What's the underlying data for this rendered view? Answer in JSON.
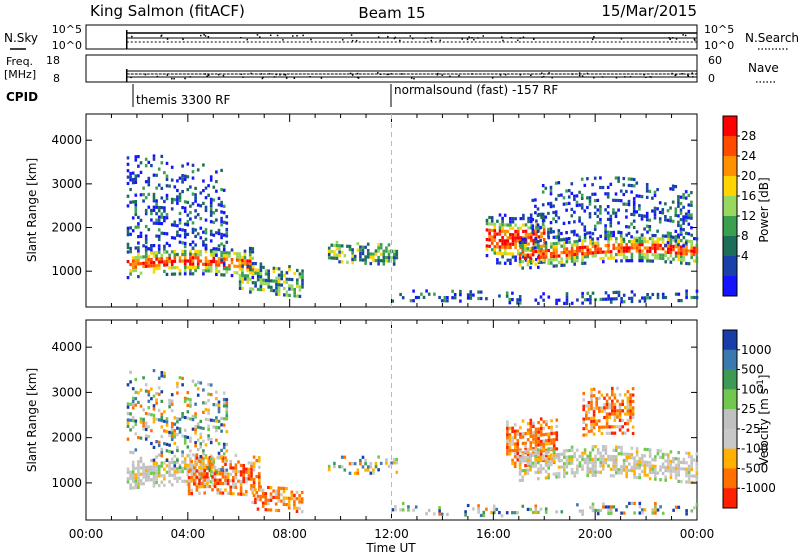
{
  "header": {
    "station": "King Salmon (fitACF)",
    "beam": "Beam 15",
    "date": "15/Mar/2015"
  },
  "top_panel": {
    "left_labels": [
      "N.Sky",
      "Freq.",
      "[MHz]",
      "CPID"
    ],
    "right_labels": [
      "N.Search",
      "Nave"
    ],
    "nsky_ticks": [
      "10^5",
      "10^0"
    ],
    "nsearch_ticks": [
      "10^5",
      "10^0"
    ],
    "freq_ticks": [
      "18",
      "8"
    ],
    "nave_ticks": [
      "60",
      "0"
    ],
    "cpid_segments": [
      {
        "label": "themis 3300 RF",
        "start_hour": 1.6
      },
      {
        "label": "normalsound (fast) -157 RF",
        "start_hour": 12.0
      }
    ]
  },
  "chart_data": [
    {
      "type": "heatmap",
      "title": "",
      "xlabel": "Time UT",
      "ylabel": "Slant Range [km]",
      "xlim": [
        0,
        24
      ],
      "ylim": [
        180,
        4600
      ],
      "x_tick_labels": [
        "00:00",
        "04:00",
        "08:00",
        "12:00",
        "16:00",
        "20:00",
        "00:00"
      ],
      "x_ticks_hours": [
        0,
        4,
        8,
        12,
        16,
        20,
        24
      ],
      "y_ticks": [
        1000,
        2000,
        3000,
        4000
      ],
      "colorbar": {
        "label": "Power [dB]",
        "tick_labels": [
          "28",
          "24",
          "20",
          "16",
          "12",
          "8",
          "4"
        ],
        "colors": [
          "#ff0000",
          "#ff4a00",
          "#ff9000",
          "#ffd400",
          "#98d860",
          "#3aa050",
          "#1d6e58",
          "#1842a8",
          "#1414ff"
        ]
      },
      "vertical_marker_hour": 12.0,
      "echo_regions": [
        {
          "t_start": 1.6,
          "t_end": 6.6,
          "range_center": 1200,
          "range_halfwidth": 350,
          "level": "high"
        },
        {
          "t_start": 1.6,
          "t_end": 5.5,
          "range_center": 2300,
          "range_halfwidth": 1100,
          "level": "low"
        },
        {
          "t_start": 6.0,
          "t_end": 8.5,
          "range_center": 800,
          "range_halfwidth": 350,
          "level": "mid"
        },
        {
          "t_start": 9.5,
          "t_end": 12.2,
          "range_center": 1450,
          "range_halfwidth": 250,
          "level": "mid"
        },
        {
          "t_start": 15.7,
          "t_end": 18.0,
          "range_center": 1900,
          "range_halfwidth": 550,
          "level": "high"
        },
        {
          "t_start": 17.0,
          "t_end": 24.0,
          "range_center": 1500,
          "range_halfwidth": 350,
          "level": "high"
        },
        {
          "t_start": 17.5,
          "t_end": 23.8,
          "range_center": 2300,
          "range_halfwidth": 700,
          "level": "low"
        },
        {
          "t_start": 12.0,
          "t_end": 24.0,
          "range_center": 420,
          "range_halfwidth": 130,
          "level": "low"
        }
      ]
    },
    {
      "type": "heatmap",
      "title": "",
      "xlabel": "Time UT",
      "ylabel": "Slant Range [km]",
      "xlim": [
        0,
        24
      ],
      "ylim": [
        180,
        4600
      ],
      "x_tick_labels": [
        "00:00",
        "04:00",
        "08:00",
        "12:00",
        "16:00",
        "20:00",
        "00:00"
      ],
      "x_ticks_hours": [
        0,
        4,
        8,
        12,
        16,
        20,
        24
      ],
      "y_ticks": [
        1000,
        2000,
        3000,
        4000
      ],
      "colorbar": {
        "label": "Velocity [m s^-1]",
        "tick_labels": [
          "1000",
          "500",
          "100",
          "25",
          "-25",
          "-100",
          "-500",
          "-1000"
        ],
        "colors": [
          "#1a3ea8",
          "#3a78b0",
          "#3c9a55",
          "#70c850",
          "#c0c0c0",
          "#c8c8c8",
          "#ffb000",
          "#ff7000",
          "#ff2000"
        ]
      },
      "vertical_marker_hour": 12.0,
      "echo_regions": [
        {
          "t_start": 1.6,
          "t_end": 5.0,
          "range_center": 1200,
          "range_halfwidth": 350,
          "level": "zero"
        },
        {
          "t_start": 4.0,
          "t_end": 6.8,
          "range_center": 1100,
          "range_halfwidth": 450,
          "level": "neg"
        },
        {
          "t_start": 1.6,
          "t_end": 5.5,
          "range_center": 2400,
          "range_halfwidth": 1000,
          "level": "mixed"
        },
        {
          "t_start": 6.5,
          "t_end": 8.5,
          "range_center": 700,
          "range_halfwidth": 250,
          "level": "neg"
        },
        {
          "t_start": 9.5,
          "t_end": 12.2,
          "range_center": 1450,
          "range_halfwidth": 200,
          "level": "mixed"
        },
        {
          "t_start": 16.5,
          "t_end": 18.5,
          "range_center": 2000,
          "range_halfwidth": 500,
          "level": "neg"
        },
        {
          "t_start": 17.0,
          "t_end": 24.0,
          "range_center": 1400,
          "range_halfwidth": 350,
          "level": "zero"
        },
        {
          "t_start": 19.5,
          "t_end": 21.5,
          "range_center": 2500,
          "range_halfwidth": 500,
          "level": "neg"
        },
        {
          "t_start": 12.0,
          "t_end": 24.0,
          "range_center": 420,
          "range_halfwidth": 130,
          "level": "mixed"
        }
      ]
    }
  ]
}
